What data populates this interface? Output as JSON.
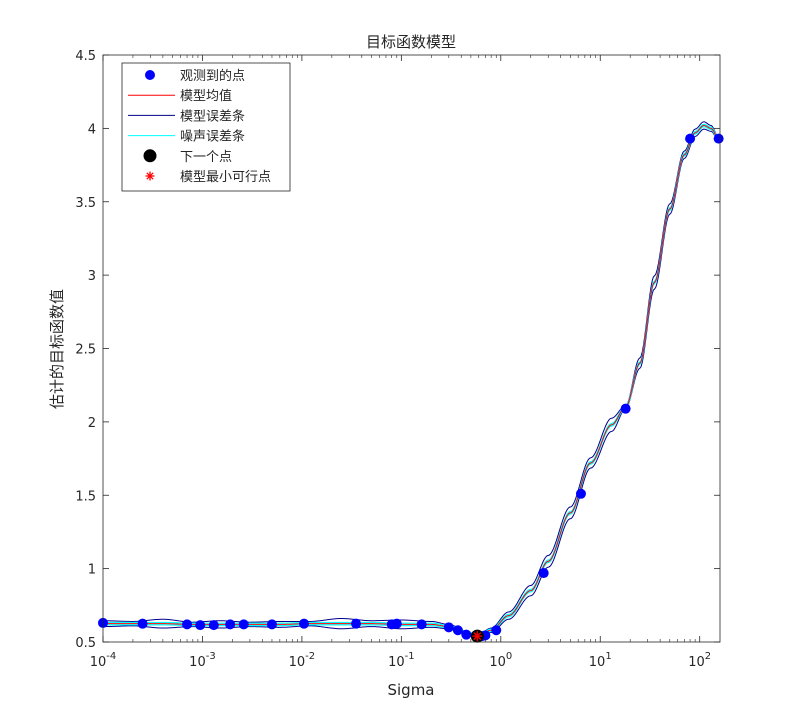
{
  "chart_data": {
    "type": "line",
    "title": "目标函数模型",
    "xlabel": "Sigma",
    "ylabel": "估计的目标函数值",
    "xscale": "log",
    "xlim": [
      0.0001,
      160
    ],
    "ylim": [
      0.5,
      4.5
    ],
    "x_ticks": [
      0.0001,
      0.001,
      0.01,
      0.1,
      1,
      10,
      100
    ],
    "x_tick_labels": [
      {
        "base": "10",
        "exp": "-4"
      },
      {
        "base": "10",
        "exp": "-3"
      },
      {
        "base": "10",
        "exp": "-2"
      },
      {
        "base": "10",
        "exp": "-1"
      },
      {
        "base": "10",
        "exp": "0"
      },
      {
        "base": "10",
        "exp": "1"
      },
      {
        "base": "10",
        "exp": "2"
      }
    ],
    "y_ticks": [
      "0.5",
      "1",
      "1.5",
      "2",
      "2.5",
      "3",
      "3.5",
      "4",
      "4.5"
    ],
    "grid": false,
    "legend_position": "top-left",
    "legend": [
      "观测到的点",
      "模型均值",
      "模型误差条",
      "噪声误差条",
      "下一个点",
      "模型最小可行点"
    ],
    "colors": {
      "observed": "#0000ff",
      "model_mean": "#ff0000",
      "model_error": "#00008b",
      "noise_error": "#00ffff",
      "next_point": "#000000",
      "min_feasible": "#ff0000",
      "axes": "#262626"
    },
    "observed_points": {
      "x": [
        0.0001,
        0.00025,
        0.0007,
        0.00095,
        0.0013,
        0.0019,
        0.0026,
        0.005,
        0.0105,
        0.035,
        0.08,
        0.09,
        0.16,
        0.3,
        0.37,
        0.45,
        0.58,
        0.65,
        0.7,
        0.9,
        2.7,
        6.4,
        18,
        80,
        155
      ],
      "y": [
        0.63,
        0.625,
        0.62,
        0.615,
        0.615,
        0.62,
        0.62,
        0.62,
        0.625,
        0.625,
        0.62,
        0.625,
        0.62,
        0.6,
        0.58,
        0.55,
        0.535,
        0.54,
        0.545,
        0.58,
        0.97,
        1.51,
        2.09,
        3.93,
        3.93
      ]
    },
    "model_curve": {
      "x": [
        0.0001,
        0.0002,
        0.0004,
        0.0008,
        0.0015,
        0.003,
        0.006,
        0.012,
        0.025,
        0.05,
        0.1,
        0.2,
        0.3,
        0.45,
        0.58,
        0.8,
        1.2,
        2,
        3,
        5,
        8,
        13,
        18,
        25,
        35,
        50,
        70,
        90,
        110,
        130,
        155
      ],
      "mean": [
        0.625,
        0.625,
        0.625,
        0.62,
        0.62,
        0.62,
        0.62,
        0.625,
        0.625,
        0.625,
        0.62,
        0.62,
        0.605,
        0.565,
        0.54,
        0.58,
        0.68,
        0.85,
        1.05,
        1.38,
        1.72,
        1.98,
        2.1,
        2.4,
        2.95,
        3.45,
        3.82,
        3.97,
        4.02,
        4.0,
        3.93
      ],
      "model_error_spread": [
        0.02,
        0.015,
        0.03,
        0.015,
        0.025,
        0.015,
        0.02,
        0.015,
        0.035,
        0.02,
        0.03,
        0.02,
        0.015,
        0.01,
        0.005,
        0.015,
        0.025,
        0.035,
        0.04,
        0.04,
        0.035,
        0.045,
        0.01,
        0.035,
        0.045,
        0.035,
        0.025,
        0.025,
        0.025,
        0.02,
        0.01
      ],
      "noise_spread": [
        0.008,
        0.008,
        0.008,
        0.008,
        0.008,
        0.008,
        0.008,
        0.008,
        0.008,
        0.008,
        0.008,
        0.008,
        0.008,
        0.008,
        0.008,
        0.008,
        0.008,
        0.008,
        0.008,
        0.008,
        0.008,
        0.008,
        0.008,
        0.008,
        0.008,
        0.008,
        0.008,
        0.008,
        0.008,
        0.008,
        0.008
      ]
    },
    "next_point": {
      "x": 0.58,
      "y": 0.54
    },
    "min_feasible_point": {
      "x": 0.58,
      "y": 0.54
    }
  }
}
